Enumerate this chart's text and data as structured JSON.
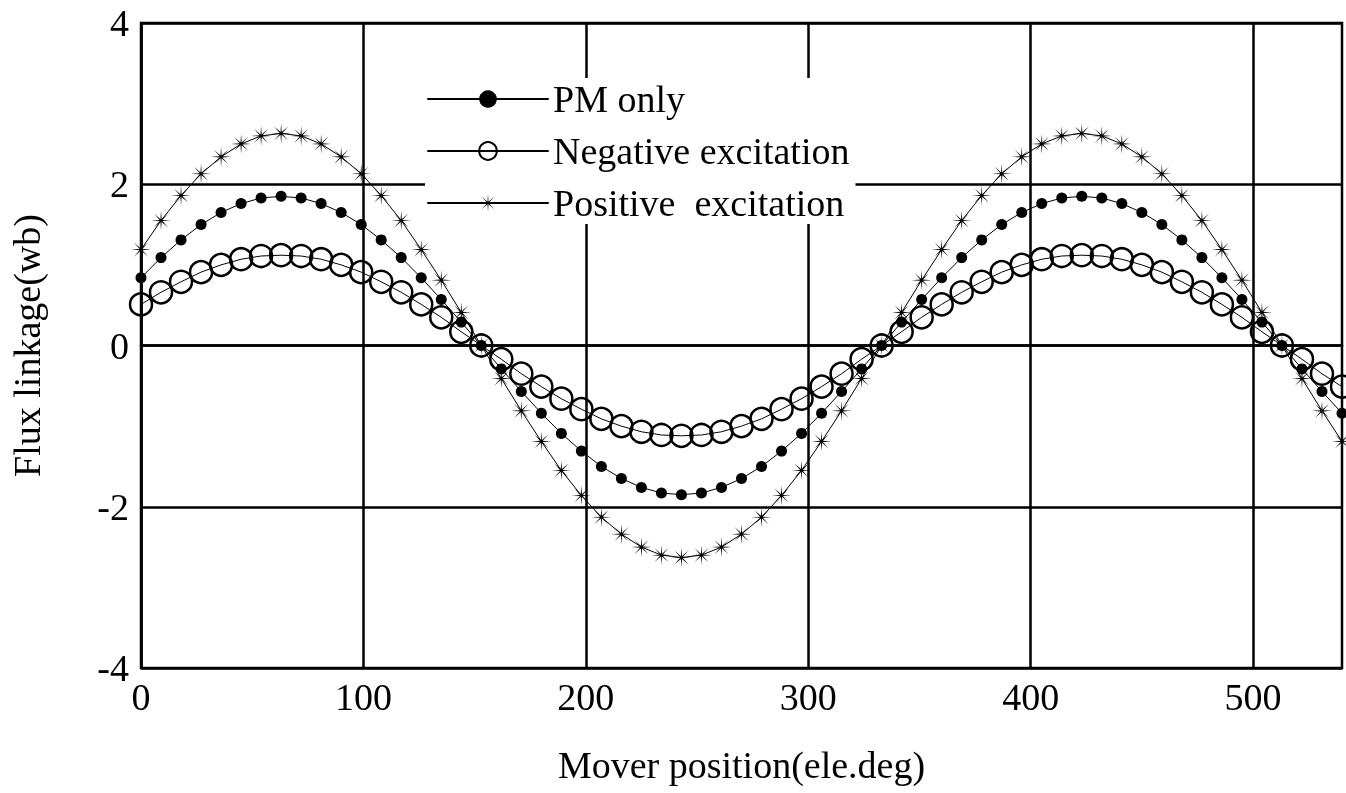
{
  "chart_data": {
    "type": "line",
    "xlabel": "Mover position(ele.deg)",
    "ylabel": "Flux linkage(wb)",
    "x": [
      0,
      9,
      18,
      27,
      36,
      45,
      54,
      63,
      72,
      81,
      90,
      99,
      108,
      117,
      126,
      135,
      144,
      153,
      162,
      171,
      180,
      189,
      198,
      207,
      216,
      225,
      234,
      243,
      252,
      261,
      270,
      279,
      288,
      297,
      306,
      315,
      324,
      333,
      342,
      351,
      360,
      369,
      378,
      387,
      396,
      405,
      414,
      423,
      432,
      441,
      450,
      459,
      468,
      477,
      486,
      495,
      504,
      513,
      522,
      531,
      540
    ],
    "series": [
      {
        "name": "PM only",
        "color": "#000000",
        "marker": "circle",
        "values": [
          0.84,
          1.09,
          1.31,
          1.5,
          1.65,
          1.76,
          1.83,
          1.85,
          1.83,
          1.76,
          1.65,
          1.5,
          1.31,
          1.09,
          0.84,
          0.57,
          0.29,
          0,
          -0.29,
          -0.57,
          -0.84,
          -1.09,
          -1.31,
          -1.5,
          -1.65,
          -1.76,
          -1.83,
          -1.85,
          -1.83,
          -1.76,
          -1.65,
          -1.5,
          -1.31,
          -1.09,
          -0.84,
          -0.57,
          -0.29,
          0,
          0.29,
          0.57,
          0.84,
          1.09,
          1.31,
          1.5,
          1.65,
          1.76,
          1.83,
          1.85,
          1.83,
          1.76,
          1.65,
          1.5,
          1.31,
          1.09,
          0.84,
          0.57,
          0.29,
          0,
          -0.29,
          -0.57,
          -0.84
        ]
      },
      {
        "name": "Negative excitation",
        "color": "#000000",
        "marker": "circle",
        "values": [
          0.51,
          0.66,
          0.79,
          0.91,
          1,
          1.07,
          1.11,
          1.12,
          1.11,
          1.07,
          1,
          0.91,
          0.79,
          0.66,
          0.51,
          0.35,
          0.17,
          0,
          -0.17,
          -0.35,
          -0.51,
          -0.66,
          -0.79,
          -0.91,
          -1,
          -1.07,
          -1.11,
          -1.12,
          -1.11,
          -1.07,
          -1,
          -0.91,
          -0.79,
          -0.66,
          -0.51,
          -0.35,
          -0.17,
          0,
          0.17,
          0.35,
          0.51,
          0.66,
          0.79,
          0.91,
          1,
          1.07,
          1.11,
          1.12,
          1.11,
          1.07,
          1,
          0.91,
          0.79,
          0.66,
          0.51,
          0.35,
          0.17,
          0,
          -0.17,
          -0.35,
          -0.51
        ]
      },
      {
        "name": "Positive  excitation",
        "color": "#000000",
        "marker": "star",
        "values": [
          1.19,
          1.55,
          1.86,
          2.13,
          2.34,
          2.5,
          2.6,
          2.63,
          2.6,
          2.5,
          2.34,
          2.13,
          1.86,
          1.55,
          1.19,
          0.81,
          0.41,
          0,
          -0.41,
          -0.81,
          -1.19,
          -1.55,
          -1.86,
          -2.13,
          -2.34,
          -2.5,
          -2.6,
          -2.63,
          -2.6,
          -2.5,
          -2.34,
          -2.13,
          -1.86,
          -1.55,
          -1.19,
          -0.81,
          -0.41,
          0,
          0.41,
          0.81,
          1.19,
          1.55,
          1.86,
          2.13,
          2.34,
          2.5,
          2.6,
          2.63,
          2.6,
          2.5,
          2.34,
          2.13,
          1.86,
          1.55,
          1.19,
          0.81,
          0.41,
          0,
          -0.41,
          -0.81,
          -1.19
        ]
      }
    ],
    "xlim": [
      0,
      540
    ],
    "xticks": [
      0,
      100,
      200,
      300,
      400,
      500
    ],
    "ylim": [
      -4,
      4
    ],
    "yticks": [
      -4,
      -2,
      0,
      2,
      4
    ],
    "grid": true,
    "legend": "top",
    "line_style": "solid"
  }
}
